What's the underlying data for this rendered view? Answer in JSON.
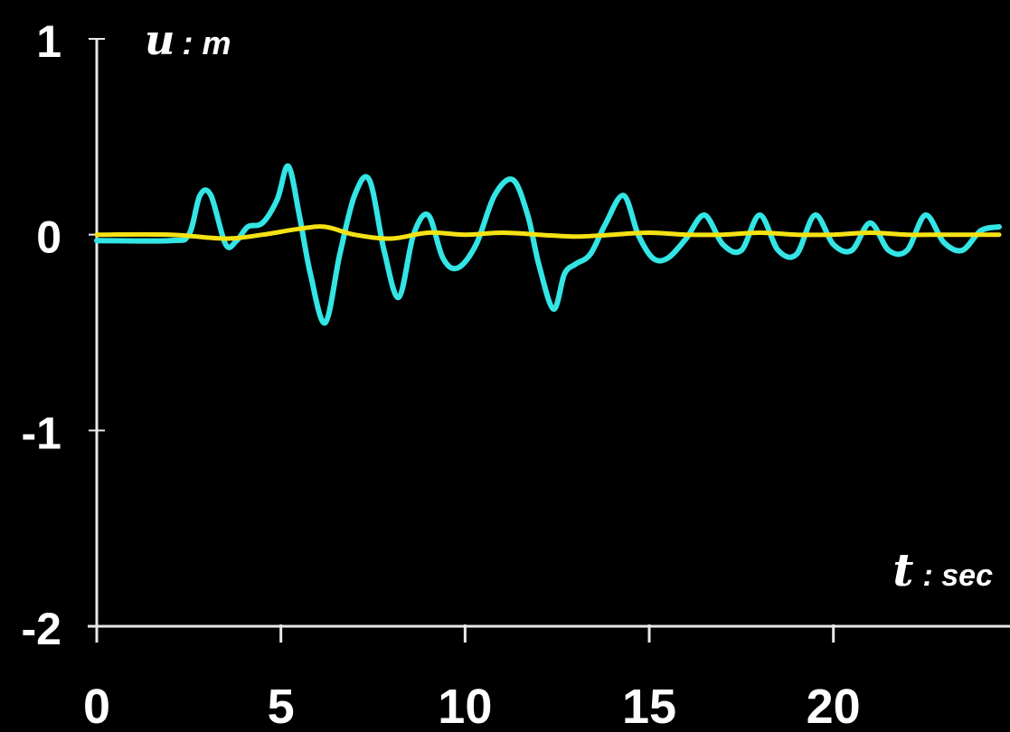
{
  "chart_data": {
    "type": "line",
    "ylabel": {
      "symbol": "u",
      "unit": ": m"
    },
    "xlabel": {
      "symbol": "t",
      "unit": ": sec"
    },
    "xlim": [
      0,
      24.5
    ],
    "ylim": [
      -2,
      1
    ],
    "xticks": [
      "0",
      "5",
      "10",
      "15",
      "20"
    ],
    "xtick_values": [
      0,
      5,
      10,
      15,
      20
    ],
    "yticks": [
      "1",
      "0",
      "-1",
      "-2"
    ],
    "ytick_values": [
      1,
      0,
      -1,
      -2
    ],
    "grid": false,
    "legend": "none",
    "series": [
      {
        "color": "#33e5e5",
        "x": [
          0,
          2.0,
          2.5,
          2.8,
          3.1,
          3.5,
          3.8,
          4.1,
          4.5,
          4.9,
          5.2,
          5.5,
          5.8,
          6.2,
          6.6,
          7.0,
          7.4,
          7.8,
          8.2,
          8.6,
          9.0,
          9.4,
          9.8,
          10.3,
          10.8,
          11.3,
          11.7,
          12.0,
          12.4,
          12.7,
          13.0,
          13.4,
          13.8,
          14.3,
          14.7,
          15.1,
          15.5,
          16.0,
          16.5,
          17.0,
          17.5,
          18.0,
          18.5,
          19.0,
          19.5,
          20.0,
          20.5,
          21.0,
          21.5,
          22.0,
          22.5,
          23.0,
          23.5,
          24.0,
          24.5
        ],
        "y": [
          -0.03,
          -0.03,
          0.0,
          0.2,
          0.2,
          -0.05,
          -0.03,
          0.04,
          0.06,
          0.18,
          0.35,
          0.1,
          -0.2,
          -0.45,
          -0.1,
          0.2,
          0.28,
          -0.08,
          -0.32,
          0.0,
          0.1,
          -0.12,
          -0.17,
          -0.05,
          0.2,
          0.28,
          0.1,
          -0.15,
          -0.38,
          -0.2,
          -0.15,
          -0.1,
          0.05,
          0.2,
          0.0,
          -0.12,
          -0.12,
          -0.02,
          0.1,
          -0.05,
          -0.08,
          0.1,
          -0.08,
          -0.1,
          0.1,
          -0.05,
          -0.08,
          0.06,
          -0.08,
          -0.08,
          0.1,
          -0.04,
          -0.08,
          0.02,
          0.04
        ]
      },
      {
        "color": "#f5e214",
        "x": [
          0,
          2.0,
          3.5,
          4.5,
          5.5,
          6.2,
          7.0,
          8.0,
          9.0,
          10.0,
          11.0,
          12.0,
          13.0,
          14.0,
          15.0,
          16.0,
          17.0,
          18.0,
          19.0,
          20.0,
          21.0,
          22.0,
          23.0,
          24.5
        ],
        "y": [
          0.0,
          0.0,
          -0.02,
          0.0,
          0.03,
          0.04,
          0.0,
          -0.02,
          0.01,
          0.0,
          0.01,
          0.0,
          -0.01,
          0.0,
          0.01,
          0.0,
          0.0,
          0.01,
          0.0,
          0.0,
          0.01,
          0.0,
          0.0,
          0.0
        ]
      }
    ]
  }
}
